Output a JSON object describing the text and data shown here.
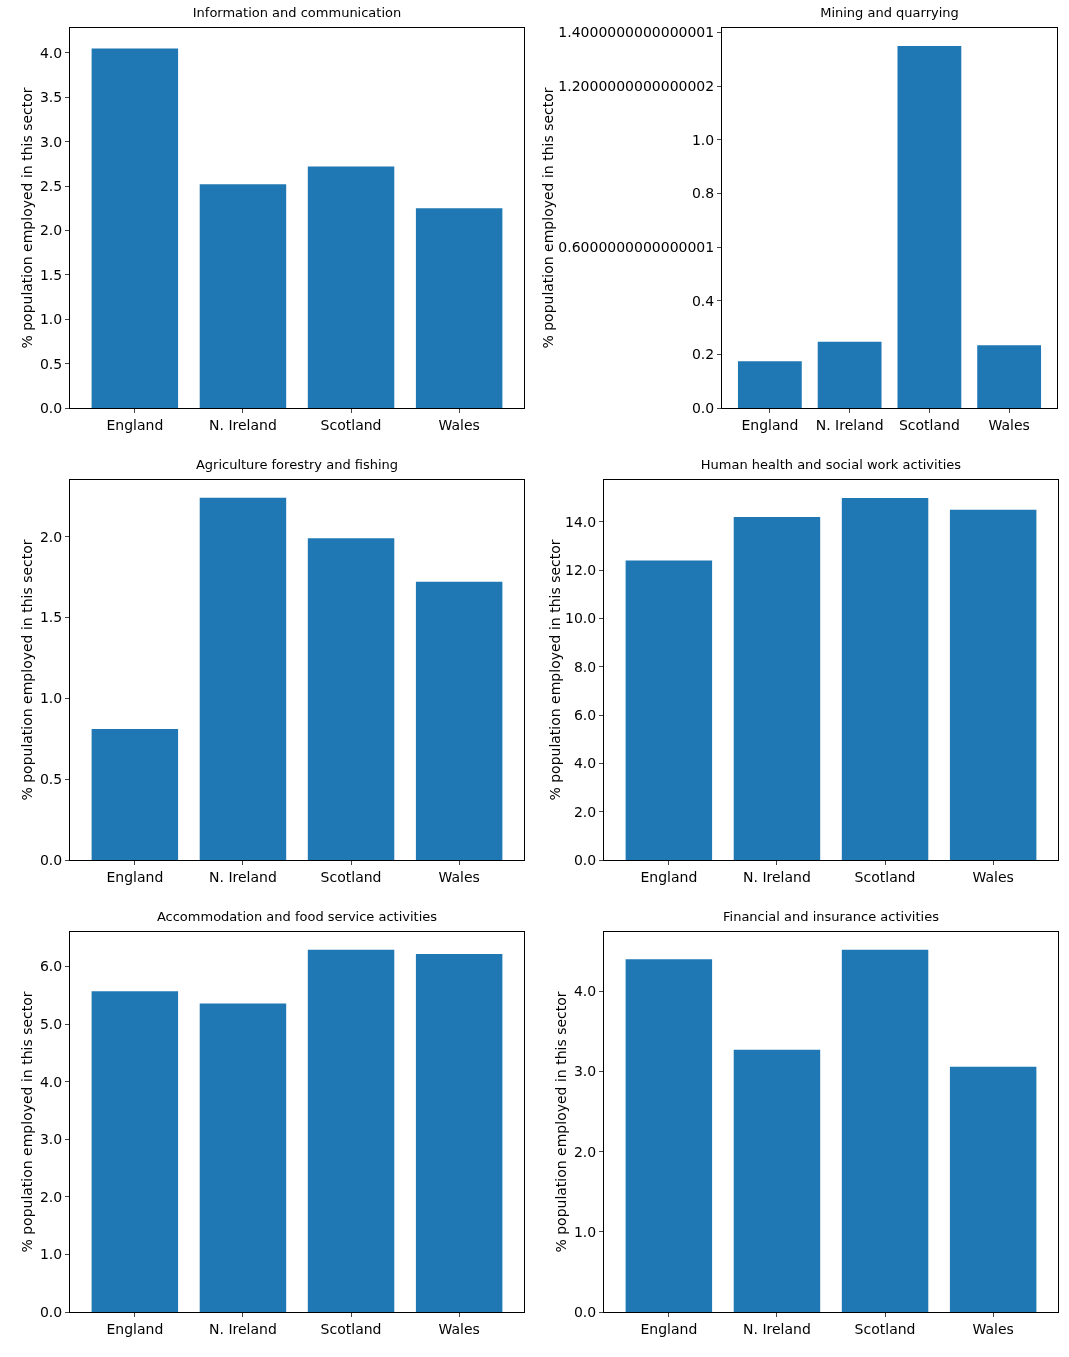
{
  "chart_data": [
    {
      "type": "bar",
      "title": "Information and communication",
      "ylabel": "% population employed in this sector",
      "categories": [
        "England",
        "N. Ireland",
        "Scotland",
        "Wales"
      ],
      "values": [
        4.05,
        2.52,
        2.72,
        2.25
      ],
      "color": "#1f77b4",
      "ylim": [
        0,
        4.28
      ],
      "yticks": [
        {
          "value": 0,
          "label": "0.0"
        },
        0.5,
        {
          "value": 1,
          "label": "1.0"
        },
        1.5,
        {
          "value": 2,
          "label": "2.0"
        },
        2.5,
        {
          "value": 3,
          "label": "3.0"
        },
        3.5,
        {
          "value": 4,
          "label": "4.0"
        }
      ],
      "grid": false
    },
    {
      "type": "bar",
      "title": "Mining and quarrying",
      "ylabel": "% population employed in this sector",
      "categories": [
        "England",
        "N. Ireland",
        "Scotland",
        "Wales"
      ],
      "values": [
        0.174,
        0.247,
        1.35,
        0.234
      ],
      "color": "#1f77b4",
      "ylim": [
        0,
        1.417
      ],
      "yticks": [
        {
          "value": 0,
          "label": "0.0"
        },
        0.2,
        0.4,
        {
          "value": 0.6,
          "label": "0.6000000000000001"
        },
        0.8,
        {
          "value": 1,
          "label": "1.0"
        },
        {
          "value": 1.2,
          "label": "1.2000000000000002"
        },
        {
          "value": 1.4,
          "label": "1.4000000000000001"
        }
      ],
      "grid": false
    },
    {
      "type": "bar",
      "title": "Agriculture forestry and fishing",
      "ylabel": "% population employed in this sector",
      "categories": [
        "England",
        "N. Ireland",
        "Scotland",
        "Wales"
      ],
      "values": [
        0.81,
        2.24,
        1.99,
        1.72
      ],
      "color": "#1f77b4",
      "ylim": [
        0,
        2.35
      ],
      "yticks": [
        {
          "value": 0,
          "label": "0.0"
        },
        0.5,
        {
          "value": 1,
          "label": "1.0"
        },
        1.5,
        {
          "value": 2,
          "label": "2.0"
        }
      ],
      "grid": false
    },
    {
      "type": "bar",
      "title": "Human health and social work activities",
      "ylabel": "% population employed in this sector",
      "categories": [
        "England",
        "N. Ireland",
        "Scotland",
        "Wales"
      ],
      "values": [
        12.4,
        14.2,
        14.99,
        14.5
      ],
      "color": "#1f77b4",
      "ylim": [
        0,
        15.73
      ],
      "yticks": [
        {
          "value": 0,
          "label": "0.0"
        },
        {
          "value": 2,
          "label": "2.0"
        },
        {
          "value": 4,
          "label": "4.0"
        },
        {
          "value": 6,
          "label": "6.0"
        },
        {
          "value": 8,
          "label": "8.0"
        },
        {
          "value": 10,
          "label": "10.0"
        },
        {
          "value": 12,
          "label": "12.0"
        },
        {
          "value": 14,
          "label": "14.0"
        }
      ],
      "grid": false
    },
    {
      "type": "bar",
      "title": "Accommodation and food service activities",
      "ylabel": "% population employed in this sector",
      "categories": [
        "England",
        "N. Ireland",
        "Scotland",
        "Wales"
      ],
      "values": [
        5.57,
        5.36,
        6.29,
        6.22
      ],
      "color": "#1f77b4",
      "ylim": [
        0,
        6.6
      ],
      "yticks": [
        {
          "value": 0,
          "label": "0.0"
        },
        {
          "value": 1,
          "label": "1.0"
        },
        {
          "value": 2,
          "label": "2.0"
        },
        {
          "value": 3,
          "label": "3.0"
        },
        {
          "value": 4,
          "label": "4.0"
        },
        {
          "value": 5,
          "label": "5.0"
        },
        {
          "value": 6,
          "label": "6.0"
        }
      ],
      "grid": false
    },
    {
      "type": "bar",
      "title": "Financial and insurance activities",
      "ylabel": "% population employed in this sector",
      "categories": [
        "England",
        "N. Ireland",
        "Scotland",
        "Wales"
      ],
      "values": [
        4.4,
        3.27,
        4.52,
        3.06
      ],
      "color": "#1f77b4",
      "ylim": [
        0,
        4.74
      ],
      "yticks": [
        {
          "value": 0,
          "label": "0.0"
        },
        {
          "value": 1,
          "label": "1.0"
        },
        {
          "value": 2,
          "label": "2.0"
        },
        {
          "value": 3,
          "label": "3.0"
        },
        {
          "value": 4,
          "label": "4.0"
        }
      ],
      "grid": false
    }
  ]
}
